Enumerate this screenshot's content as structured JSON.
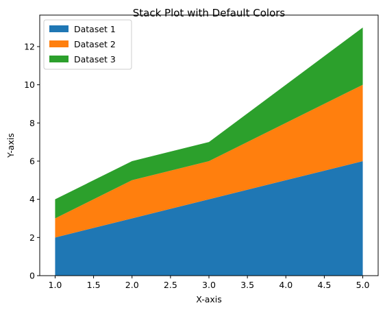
{
  "chart_data": {
    "type": "area",
    "stacked": true,
    "title": "Stack Plot with Default Colors",
    "xlabel": "X-axis",
    "ylabel": "Y-axis",
    "x": [
      1,
      2,
      3,
      4,
      5
    ],
    "series": [
      {
        "name": "Dataset 1",
        "values": [
          2,
          3,
          4,
          5,
          6
        ],
        "color": "#1f77b4"
      },
      {
        "name": "Dataset 2",
        "values": [
          1,
          2,
          2,
          3,
          4
        ],
        "color": "#ff7f0e"
      },
      {
        "name": "Dataset 3",
        "values": [
          1,
          1,
          1,
          2,
          3
        ],
        "color": "#2ca02c"
      }
    ],
    "xlim": [
      0.8,
      5.2
    ],
    "ylim": [
      0,
      13.65
    ],
    "xticks": [
      1.0,
      1.5,
      2.0,
      2.5,
      3.0,
      3.5,
      4.0,
      4.5,
      5.0
    ],
    "xtick_labels": [
      "1.0",
      "1.5",
      "2.0",
      "2.5",
      "3.0",
      "3.5",
      "4.0",
      "4.5",
      "5.0"
    ],
    "yticks": [
      0,
      2,
      4,
      6,
      8,
      10,
      12
    ],
    "ytick_labels": [
      "0",
      "2",
      "4",
      "6",
      "8",
      "10",
      "12"
    ],
    "grid": false,
    "legend_position": "top-left"
  }
}
